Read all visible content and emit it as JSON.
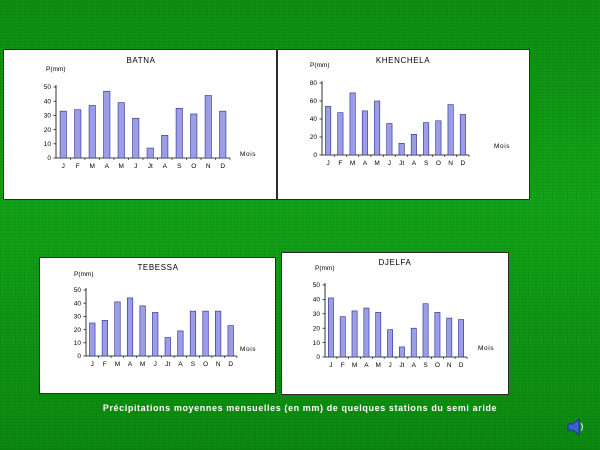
{
  "caption": "Précipitations moyennes mensuelles (en mm) de quelques stations du semi aride",
  "colors": {
    "bar_fill": "#9b9ee6",
    "bar_stroke": "#2a2a8c",
    "axis": "#000000"
  },
  "icons": {
    "audio": "speaker-icon"
  },
  "chart_data": [
    {
      "type": "bar",
      "title": "BATNA",
      "ylabel": "P(mm)",
      "xlabel": "Mois",
      "categories": [
        "J",
        "F",
        "M",
        "A",
        "M",
        "J",
        "Jt",
        "A",
        "S",
        "O",
        "N",
        "D"
      ],
      "values": [
        33,
        34,
        37,
        47,
        39,
        28,
        7,
        16,
        35,
        31,
        44,
        33
      ],
      "yticks": [
        0,
        10,
        20,
        30,
        40,
        50
      ],
      "ylim": [
        0,
        50
      ],
      "grid": false
    },
    {
      "type": "bar",
      "title": "KHENCHELA",
      "ylabel": "P(mm)",
      "xlabel": "Mois",
      "categories": [
        "J",
        "F",
        "M",
        "A",
        "M",
        "J",
        "Jt",
        "A",
        "S",
        "O",
        "N",
        "D"
      ],
      "values": [
        54,
        47,
        69,
        49,
        60,
        35,
        13,
        23,
        36,
        38,
        56,
        45
      ],
      "yticks": [
        0,
        20,
        40,
        60,
        80
      ],
      "ylim": [
        0,
        80
      ],
      "grid": false
    },
    {
      "type": "bar",
      "title": "TEBESSA",
      "ylabel": "P(mm)",
      "xlabel": "Mois",
      "categories": [
        "J",
        "F",
        "M",
        "A",
        "M",
        "J",
        "Jt",
        "A",
        "S",
        "O",
        "N",
        "D"
      ],
      "values": [
        25,
        27,
        41,
        44,
        38,
        33,
        14,
        19,
        34,
        34,
        34,
        23
      ],
      "yticks": [
        0,
        10,
        20,
        30,
        40,
        50
      ],
      "ylim": [
        0,
        50
      ],
      "grid": false
    },
    {
      "type": "bar",
      "title": "DJELFA",
      "ylabel": "P(mm)",
      "xlabel": "Mois",
      "categories": [
        "J",
        "F",
        "M",
        "A",
        "M",
        "J",
        "Jt",
        "A",
        "S",
        "O",
        "N",
        "D"
      ],
      "values": [
        41,
        28,
        32,
        34,
        31,
        19,
        7,
        20,
        37,
        31,
        27,
        26
      ],
      "yticks": [
        0,
        10,
        20,
        30,
        40,
        50
      ],
      "ylim": [
        0,
        50
      ],
      "grid": false
    }
  ]
}
